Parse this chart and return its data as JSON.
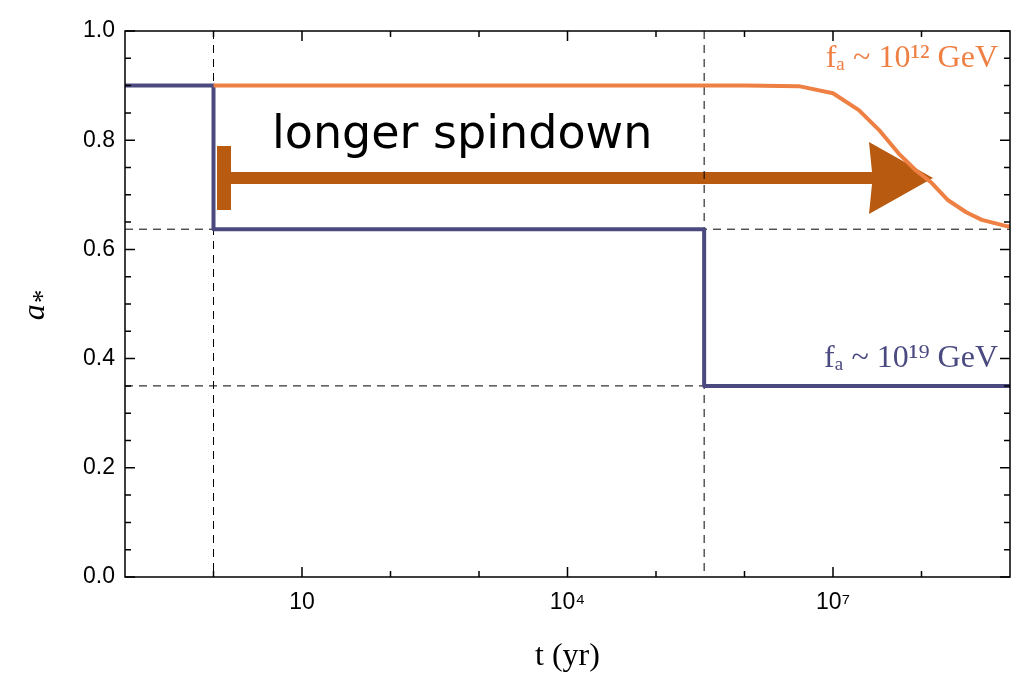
{
  "chart_data": {
    "type": "line",
    "xlabel": "t (yr)",
    "ylabel": "a$_{*}$",
    "log": "x",
    "xlim": [
      0.1,
      1000000000
    ],
    "xticks": [
      {
        "value": 1,
        "label": null
      },
      {
        "value": 10,
        "label": "10"
      },
      {
        "value": 100,
        "label": null
      },
      {
        "value": 1000,
        "label": null
      },
      {
        "value": 10000,
        "label": "10⁴"
      },
      {
        "value": 100000,
        "label": null
      },
      {
        "value": 1000000,
        "label": null
      },
      {
        "value": 10000000,
        "label": "10⁷"
      },
      {
        "value": 100000000,
        "label": null
      }
    ],
    "ylim": [
      0,
      1
    ],
    "yticks": [
      {
        "value": 0,
        "label": "0.0"
      },
      {
        "value": 0.05,
        "label": null
      },
      {
        "value": 0.1,
        "label": null
      },
      {
        "value": 0.15,
        "label": null
      },
      {
        "value": 0.2,
        "label": "0.2"
      },
      {
        "value": 0.25,
        "label": null
      },
      {
        "value": 0.3,
        "label": null
      },
      {
        "value": 0.35,
        "label": null
      },
      {
        "value": 0.4,
        "label": "0.4"
      },
      {
        "value": 0.45,
        "label": null
      },
      {
        "value": 0.5,
        "label": null
      },
      {
        "value": 0.55,
        "label": null
      },
      {
        "value": 0.6,
        "label": "0.6"
      },
      {
        "value": 0.65,
        "label": null
      },
      {
        "value": 0.7,
        "label": null
      },
      {
        "value": 0.75,
        "label": null
      },
      {
        "value": 0.8,
        "label": "0.8"
      },
      {
        "value": 0.85,
        "label": null
      },
      {
        "value": 0.9,
        "label": null
      },
      {
        "value": 0.95,
        "label": null
      },
      {
        "value": 1,
        "label": "1.0"
      }
    ],
    "series": [
      {
        "name": "fₐ ~ 10¹² GeV",
        "color": "#ee8044",
        "x": [
          1,
          1000000,
          4100000,
          10000000,
          19600000,
          33000000,
          55000000,
          86000000,
          130000000,
          200000000,
          320000000,
          480000000,
          890000000,
          1000000000
        ],
        "values": [
          0.9,
          0.9,
          0.899,
          0.886,
          0.855,
          0.819,
          0.776,
          0.745,
          0.722,
          0.69,
          0.668,
          0.654,
          0.643,
          0.642
        ]
      },
      {
        "name": "fₐ ~ 10¹⁹ GeV",
        "color": "#4a4a80",
        "x": [
          0.1,
          1,
          1,
          350000,
          350000,
          1000000000
        ],
        "values": [
          0.9,
          0.9,
          0.637,
          0.637,
          0.35,
          0.35
        ]
      }
    ],
    "ref_lines": [
      {
        "axis": "y",
        "value": 0.637,
        "color": "#000000",
        "line_style": "dashed"
      },
      {
        "axis": "y",
        "value": 0.35,
        "color": "#000000",
        "line_style": "dashed"
      },
      {
        "axis": "x",
        "value": 1,
        "color": "#000000",
        "line_style": "dashed"
      },
      {
        "axis": "x",
        "value": 350000,
        "color": "#000000",
        "line_style": "dashed"
      }
    ],
    "annotations": [
      "longer spindown"
    ],
    "legend": false,
    "marker": "none",
    "line_style": "solid"
  }
}
